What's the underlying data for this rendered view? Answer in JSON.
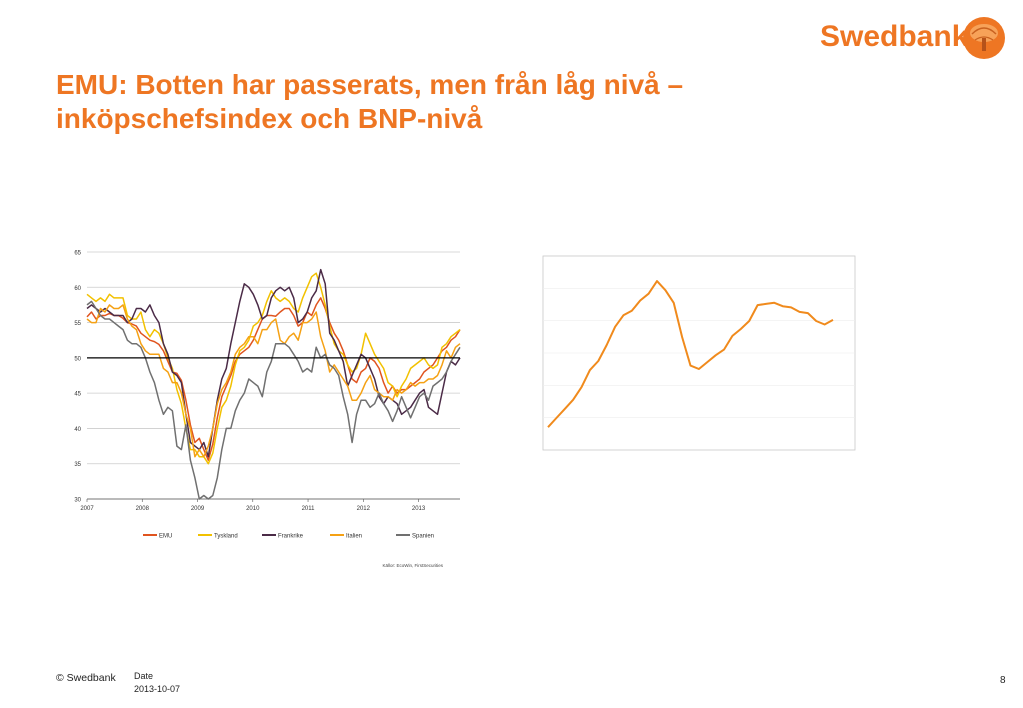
{
  "brand": {
    "name": "Swedbank",
    "color": "#ee7623"
  },
  "slide": {
    "title_line1": "EMU: Botten har passerats, men från låg nivå –",
    "title_line2": "inköpschefsindex och BNP-nivå"
  },
  "footer": {
    "copyright": "© Swedbank",
    "date_label": "Date",
    "date": "2013-10-07",
    "page": "8"
  },
  "chart_data": [
    {
      "type": "line",
      "ylim": [
        30,
        65
      ],
      "yticks": [
        "30",
        "35",
        "40",
        "45",
        "50",
        "55",
        "60",
        "65"
      ],
      "x_start": 2007.0,
      "x_end": 2013.75,
      "xticks": [
        "2007",
        "2008",
        "2009",
        "2010",
        "2011",
        "2012",
        "2013"
      ],
      "reference_line": 50,
      "grid": true,
      "legend_position": "bottom",
      "source": "Källor: EcoWin, FirstSecurities",
      "series": [
        {
          "name": "EMU",
          "color": "#e0541f",
          "values": [
            55.8,
            56.5,
            55.5,
            56.0,
            56.0,
            56.3,
            56.0,
            56.0,
            55.6,
            55.0,
            54.8,
            54.5,
            53.5,
            53.0,
            52.5,
            52.3,
            51.9,
            51.0,
            49.5,
            48.0,
            47.8,
            46.8,
            44.0,
            40.5,
            38.0,
            38.6,
            37.0,
            35.5,
            37.8,
            41.5,
            44.5,
            46.0,
            47.5,
            49.5,
            50.5,
            51.0,
            51.5,
            52.5,
            54.0,
            55.5,
            56.0,
            56.0,
            55.9,
            56.5,
            57.0,
            57.0,
            56.0,
            54.5,
            55.0,
            56.5,
            56.0,
            57.5,
            58.5,
            57.0,
            55.0,
            53.5,
            52.5,
            51.0,
            49.0,
            47.0,
            46.5,
            48.0,
            48.5,
            50.0,
            49.5,
            48.5,
            46.5,
            45.0,
            46.0,
            45.0,
            45.5,
            45.5,
            46.0,
            46.5,
            47.0,
            48.0,
            48.5,
            49.0,
            50.0,
            51.0,
            51.5,
            52.5,
            53.0,
            54.0
          ]
        },
        {
          "name": "Tyskland",
          "color": "#f2c100",
          "values": [
            59.0,
            58.5,
            58.0,
            58.5,
            58.0,
            59.0,
            58.5,
            58.5,
            58.5,
            56.0,
            55.5,
            55.5,
            56.5,
            54.0,
            53.0,
            54.0,
            53.5,
            52.0,
            50.0,
            48.5,
            45.5,
            43.5,
            40.0,
            37.0,
            37.0,
            36.0,
            36.0,
            35.0,
            36.5,
            40.0,
            43.0,
            44.0,
            46.0,
            49.0,
            51.0,
            51.5,
            52.5,
            54.5,
            55.0,
            56.0,
            58.0,
            59.5,
            58.5,
            58.0,
            58.5,
            58.0,
            57.0,
            56.5,
            58.5,
            60.0,
            61.5,
            62.0,
            60.0,
            57.5,
            54.5,
            52.0,
            51.0,
            50.5,
            49.0,
            48.0,
            48.5,
            50.5,
            53.5,
            52.0,
            50.5,
            49.5,
            48.5,
            46.5,
            46.0,
            44.5,
            46.0,
            47.0,
            48.5,
            49.0,
            49.5,
            50.0,
            49.0,
            48.5,
            49.0,
            51.5,
            52.0,
            53.0,
            53.5,
            54.0
          ]
        },
        {
          "name": "Frankrike",
          "color": "#4b2b47",
          "values": [
            57.0,
            57.5,
            57.0,
            56.5,
            57.0,
            56.5,
            56.0,
            56.0,
            56.0,
            55.0,
            55.5,
            57.0,
            57.0,
            56.5,
            57.5,
            56.0,
            55.0,
            52.0,
            50.5,
            48.0,
            47.5,
            46.5,
            42.0,
            38.0,
            37.5,
            37.0,
            38.0,
            36.0,
            40.0,
            44.0,
            47.0,
            48.5,
            52.0,
            55.0,
            58.0,
            60.5,
            60.0,
            59.0,
            57.5,
            55.5,
            56.0,
            58.5,
            59.5,
            60.0,
            59.5,
            60.0,
            58.5,
            55.0,
            55.5,
            56.5,
            58.5,
            59.5,
            62.5,
            60.5,
            53.5,
            52.5,
            51.0,
            49.5,
            46.0,
            47.5,
            49.0,
            50.5,
            50.0,
            48.5,
            47.0,
            44.5,
            43.5,
            44.5,
            44.0,
            43.5,
            42.0,
            42.5,
            43.0,
            44.0,
            45.0,
            45.5,
            43.0,
            42.5,
            42.0,
            45.0,
            48.0,
            49.5,
            49.0,
            50.0
          ]
        },
        {
          "name": "Italien",
          "color": "#f5a114",
          "values": [
            55.5,
            55.0,
            55.0,
            57.0,
            56.5,
            57.5,
            57.0,
            57.0,
            57.5,
            55.5,
            54.5,
            54.0,
            52.0,
            51.0,
            50.5,
            50.5,
            50.5,
            48.5,
            48.0,
            46.5,
            46.5,
            45.0,
            42.0,
            40.0,
            36.0,
            37.0,
            36.0,
            37.5,
            40.0,
            43.5,
            45.5,
            46.5,
            48.0,
            50.5,
            51.5,
            52.0,
            53.0,
            53.0,
            52.0,
            54.0,
            54.0,
            55.0,
            55.5,
            52.5,
            52.0,
            53.0,
            53.5,
            52.5,
            55.0,
            55.0,
            55.5,
            56.5,
            53.0,
            51.0,
            48.0,
            49.0,
            48.0,
            47.0,
            46.0,
            44.0,
            44.0,
            45.0,
            46.5,
            47.5,
            45.5,
            45.0,
            44.5,
            44.5,
            44.0,
            45.5,
            45.0,
            45.5,
            46.5,
            46.0,
            46.5,
            46.5,
            47.0,
            47.0,
            47.5,
            49.0,
            51.0,
            50.0,
            51.5,
            52.0
          ]
        },
        {
          "name": "Spanien",
          "color": "#707070",
          "values": [
            57.5,
            58.0,
            57.0,
            56.0,
            55.5,
            55.5,
            55.0,
            54.5,
            54.0,
            52.5,
            52.0,
            52.0,
            51.5,
            50.0,
            48.0,
            46.5,
            44.0,
            42.0,
            43.0,
            42.5,
            37.5,
            37.0,
            40.5,
            35.5,
            33.0,
            30.0,
            30.5,
            29.5,
            30.5,
            33.0,
            37.0,
            40.0,
            40.0,
            42.5,
            44.0,
            45.0,
            47.0,
            46.5,
            46.0,
            44.5,
            48.0,
            49.5,
            52.0,
            52.0,
            52.0,
            51.5,
            50.5,
            49.5,
            48.0,
            48.5,
            48.0,
            51.5,
            50.0,
            50.5,
            49.0,
            48.5,
            47.5,
            44.5,
            42.0,
            38.0,
            42.0,
            44.0,
            44.0,
            43.0,
            43.5,
            45.0,
            43.5,
            42.5,
            41.0,
            42.5,
            44.5,
            43.0,
            41.5,
            43.0,
            44.5,
            45.0,
            44.0,
            46.0,
            46.5,
            47.0,
            48.0,
            49.5,
            50.5,
            51.5
          ]
        }
      ]
    },
    {
      "type": "line",
      "series": [
        {
          "color": "#f08a1c",
          "values": [
            20,
            28,
            36,
            44,
            55,
            70,
            78,
            92,
            108,
            118,
            122,
            131,
            137,
            148,
            140,
            129,
            99,
            74,
            71,
            77,
            83,
            88,
            100,
            106,
            113,
            127,
            128,
            129,
            126,
            125,
            121,
            120,
            113,
            110,
            114
          ]
        }
      ]
    }
  ]
}
